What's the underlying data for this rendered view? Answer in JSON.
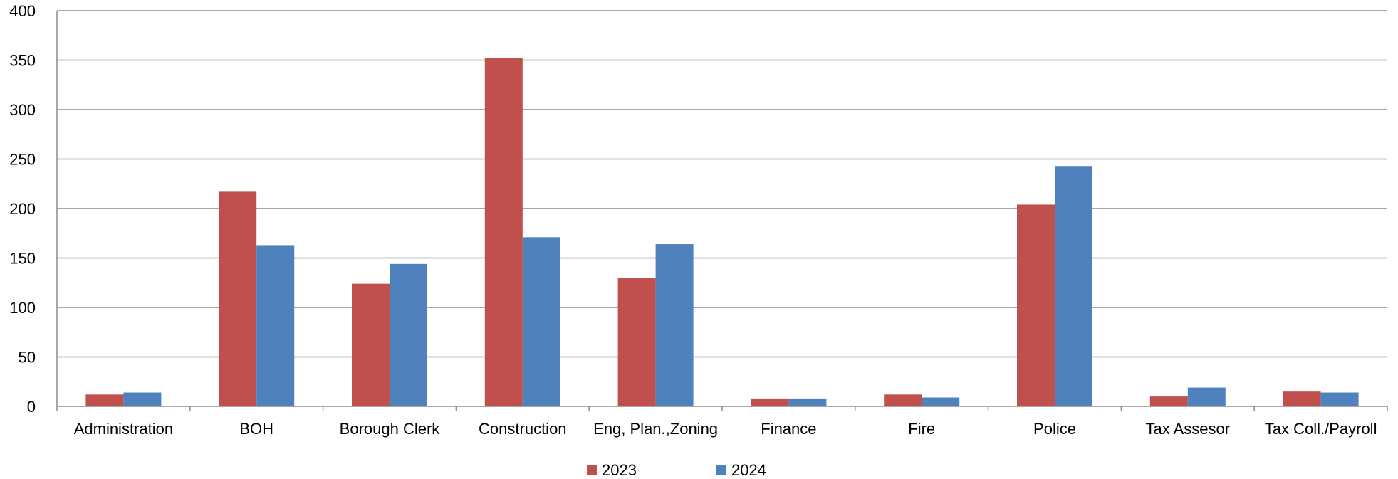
{
  "chart_data": {
    "type": "bar",
    "categories": [
      "Administration",
      "BOH",
      "Borough Clerk",
      "Construction",
      "Eng, Plan.,Zoning",
      "Finance",
      "Fire",
      "Police",
      "Tax Assesor",
      "Tax Coll./Payroll"
    ],
    "series": [
      {
        "name": "2023",
        "color": "#c0504d",
        "values": [
          12,
          217,
          124,
          352,
          130,
          8,
          12,
          204,
          10,
          15
        ]
      },
      {
        "name": "2024",
        "color": "#4f81bd",
        "values": [
          14,
          163,
          144,
          171,
          164,
          8,
          9,
          243,
          19,
          14
        ]
      }
    ],
    "ylim": [
      0,
      400
    ],
    "yticks": [
      0,
      50,
      100,
      150,
      200,
      250,
      300,
      350,
      400
    ],
    "grid": true,
    "legend_position": "bottom-center"
  }
}
